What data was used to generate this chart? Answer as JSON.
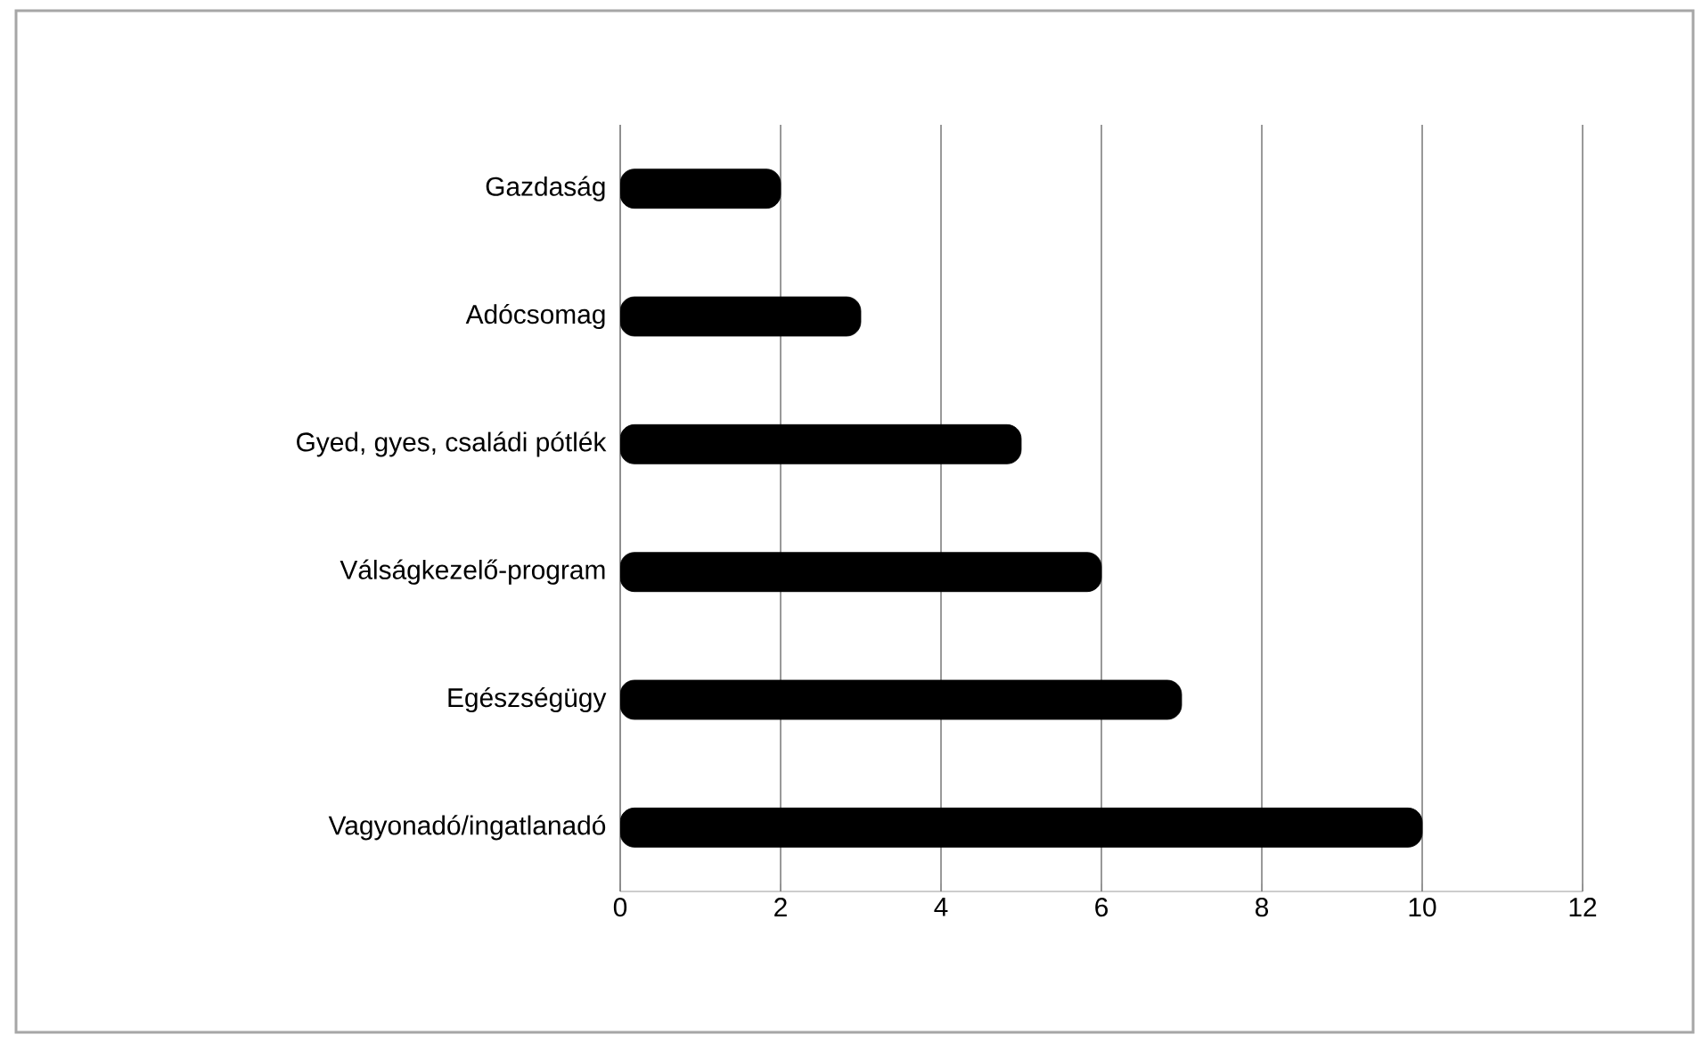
{
  "chart_data": {
    "type": "bar",
    "orientation": "horizontal",
    "categories": [
      "Gazdaság",
      "Adócsomag",
      "Gyed, gyes, családi pótlék",
      "Válságkezelő-program",
      "Egészségügy",
      "Vagyonadó/ingatlanadó"
    ],
    "values": [
      2,
      3,
      5,
      6,
      7,
      10
    ],
    "color": "#000000",
    "xlim": [
      0,
      12
    ],
    "xticks": [
      0,
      2,
      4,
      6,
      8,
      10,
      12
    ],
    "grid": "x"
  }
}
